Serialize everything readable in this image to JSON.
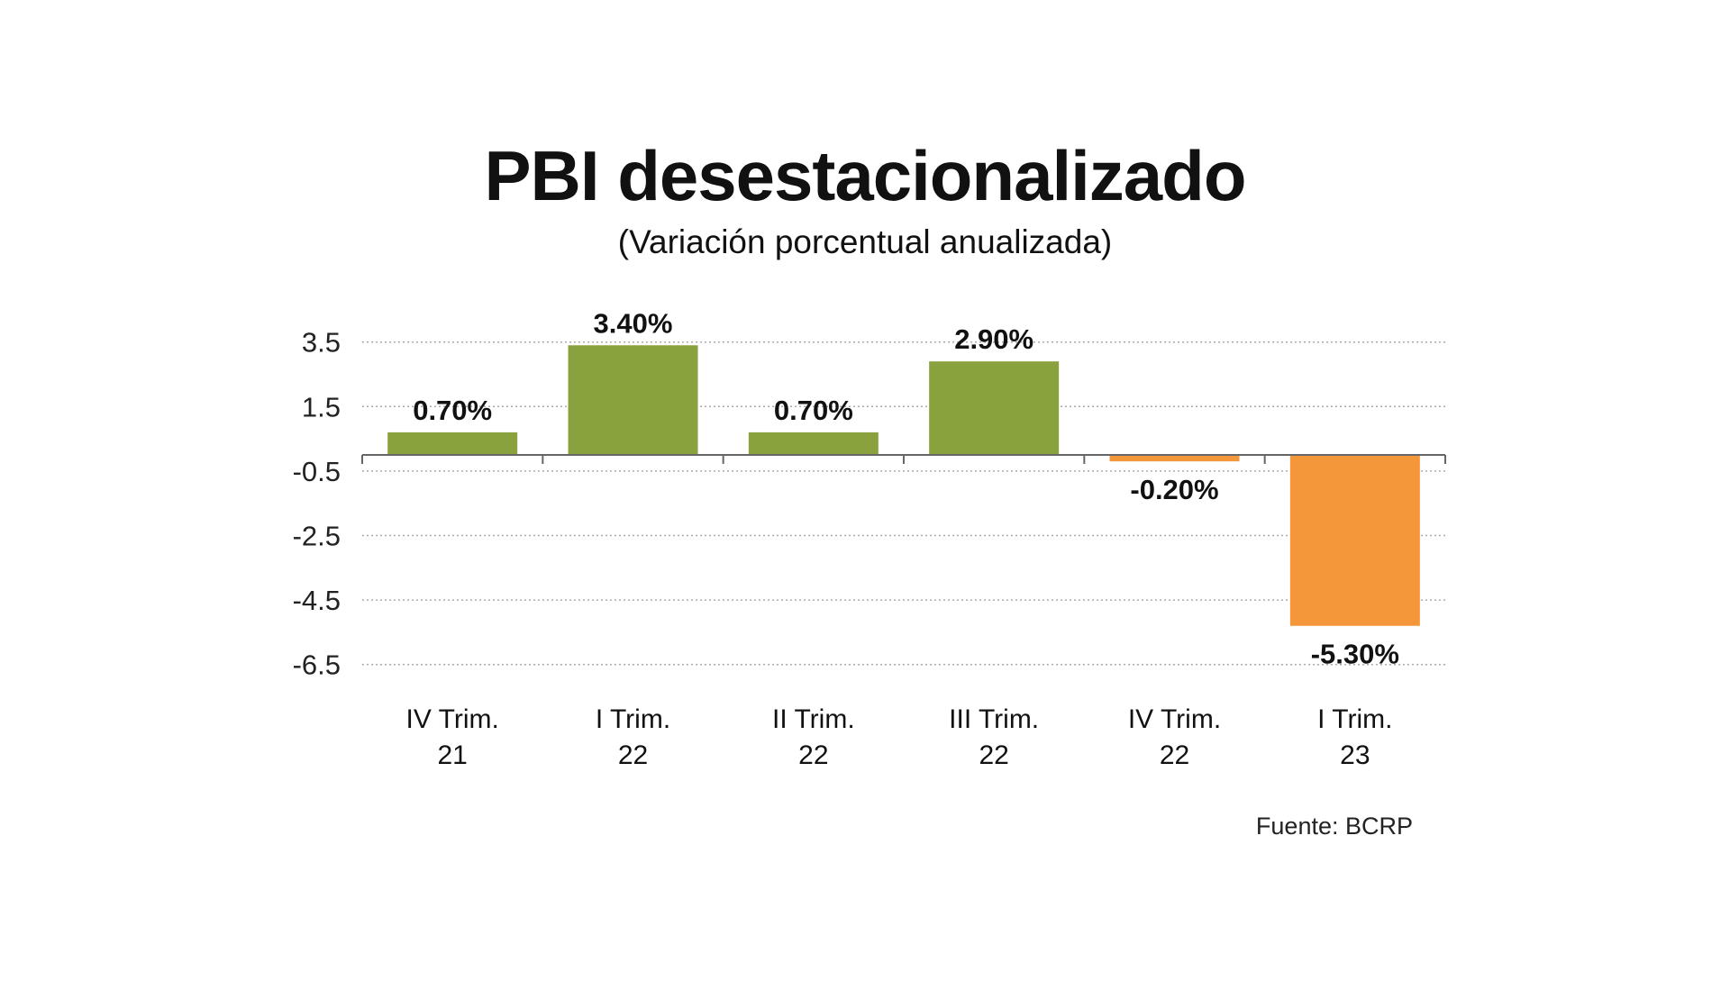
{
  "chart_data": {
    "type": "bar",
    "title": "PBI desestacionalizado",
    "subtitle": "(Variación porcentual anualizada)",
    "categories": [
      [
        "IV Trim.",
        "21"
      ],
      [
        "I Trim.",
        "22"
      ],
      [
        "II Trim.",
        "22"
      ],
      [
        "III Trim.",
        "22"
      ],
      [
        "IV Trim.",
        "22"
      ],
      [
        "I Trim.",
        "23"
      ]
    ],
    "values": [
      0.7,
      3.4,
      0.7,
      2.9,
      -0.2,
      -5.3
    ],
    "data_labels": [
      "0.70%",
      "3.40%",
      "0.70%",
      "2.90%",
      "-0.20%",
      "-5.30%"
    ],
    "yticks": [
      3.5,
      1.5,
      -0.5,
      -2.5,
      -4.5,
      -6.5
    ],
    "ytick_labels": [
      "3.5",
      "1.5",
      "-0.5",
      "-2.5",
      "-4.5",
      "-6.5"
    ],
    "ylim": [
      -6.5,
      3.5
    ],
    "grid": true,
    "colors": {
      "positive": "#8aa23e",
      "negative": "#f4963a"
    },
    "source": "Fuente: BCRP"
  }
}
